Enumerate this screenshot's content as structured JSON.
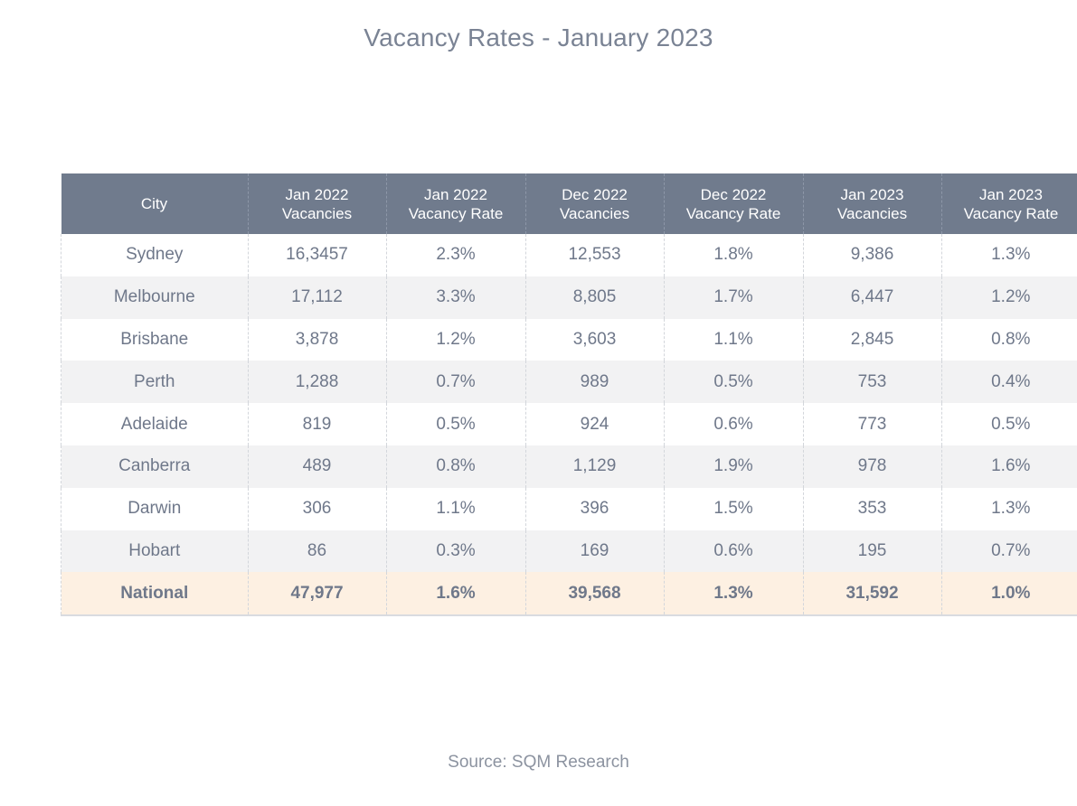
{
  "title": "Vacancy Rates - January 2023",
  "source": "Source: SQM Research",
  "chart_data": {
    "type": "table",
    "title": "Vacancy Rates - January 2023",
    "columns": [
      "City",
      "Jan 2022\nVacancies",
      "Jan 2022\nVacancy Rate",
      "Dec 2022\nVacancies",
      "Dec 2022\nVacancy Rate",
      "Jan 2023\nVacancies",
      "Jan 2023\nVacancy Rate"
    ],
    "rows": [
      [
        "Sydney",
        "16,3457",
        "2.3%",
        "12,553",
        "1.8%",
        "9,386",
        "1.3%"
      ],
      [
        "Melbourne",
        "17,112",
        "3.3%",
        "8,805",
        "1.7%",
        "6,447",
        "1.2%"
      ],
      [
        "Brisbane",
        "3,878",
        "1.2%",
        "3,603",
        "1.1%",
        "2,845",
        "0.8%"
      ],
      [
        "Perth",
        "1,288",
        "0.7%",
        "989",
        "0.5%",
        "753",
        "0.4%"
      ],
      [
        "Adelaide",
        "819",
        "0.5%",
        "924",
        "0.6%",
        "773",
        "0.5%"
      ],
      [
        "Canberra",
        "489",
        "0.8%",
        "1,129",
        "1.9%",
        "978",
        "1.6%"
      ],
      [
        "Darwin",
        "306",
        "1.1%",
        "396",
        "1.5%",
        "353",
        "1.3%"
      ],
      [
        "Hobart",
        "86",
        "0.3%",
        "169",
        "0.6%",
        "195",
        "0.7%"
      ]
    ],
    "total_row": [
      "National",
      "47,977",
      "1.6%",
      "39,568",
      "1.3%",
      "31,592",
      "1.0%"
    ],
    "source": "Source: SQM Research"
  },
  "colors": {
    "header_bg": "#707b8d",
    "header_text": "#ffffff",
    "text": "#6f788a",
    "stripe": "#f2f2f3",
    "total_row_bg": "#fdf0e2"
  }
}
